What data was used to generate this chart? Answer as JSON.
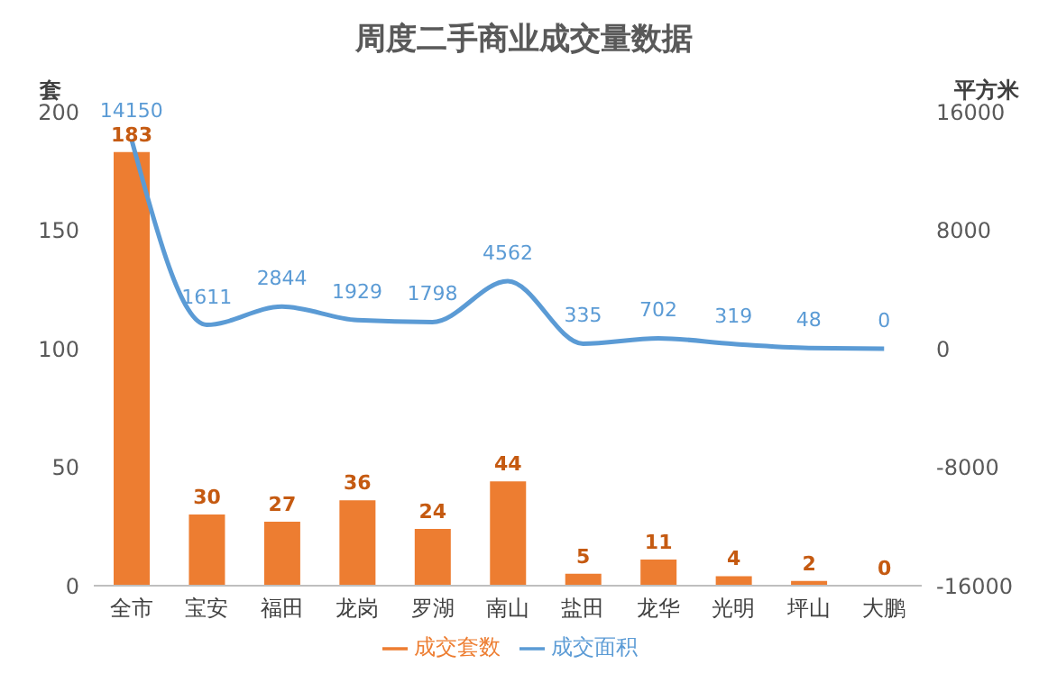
{
  "chart_data": {
    "type": "bar",
    "title": "周度二手商业成交量数据",
    "ylabel": "套",
    "y2label": "平方米",
    "categories": [
      "全市",
      "宝安",
      "福田",
      "龙岗",
      "罗湖",
      "南山",
      "盐田",
      "龙华",
      "光明",
      "坪山",
      "大鹏"
    ],
    "series": [
      {
        "name": "成交套数",
        "color": "#ed7d31",
        "values": [
          183,
          30,
          27,
          36,
          24,
          44,
          5,
          11,
          4,
          2,
          0
        ]
      },
      {
        "name": "成交面积",
        "type": "line",
        "axis": "y2",
        "color": "#5b9bd5",
        "values": [
          14150,
          1611,
          2844,
          1929,
          1798,
          4562,
          335,
          702,
          319,
          48,
          0
        ]
      }
    ],
    "ylim": [
      0,
      200
    ],
    "yticks": [
      0,
      50,
      100,
      150,
      200
    ],
    "y2lim": [
      -16000,
      16000
    ],
    "y2ticks": [
      -16000,
      -8000,
      0,
      8000,
      16000
    ],
    "data_labels": true,
    "legend": "bottom",
    "grid": false,
    "marker": "none",
    "line_style": "solid"
  }
}
